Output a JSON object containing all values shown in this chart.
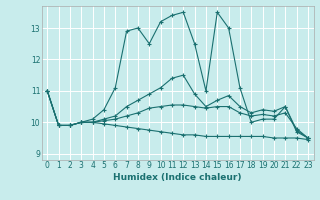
{
  "xlabel": "Humidex (Indice chaleur)",
  "background_color": "#c8ecec",
  "line_color": "#1a7070",
  "grid_color": "#ffffff",
  "xlim": [
    -0.5,
    23.5
  ],
  "ylim": [
    8.8,
    13.7
  ],
  "yticks": [
    9,
    10,
    11,
    12,
    13
  ],
  "xticks": [
    0,
    1,
    2,
    3,
    4,
    5,
    6,
    7,
    8,
    9,
    10,
    11,
    12,
    13,
    14,
    15,
    16,
    17,
    18,
    19,
    20,
    21,
    22,
    23
  ],
  "series": [
    [
      11.0,
      9.9,
      9.9,
      10.0,
      10.1,
      10.4,
      11.1,
      12.9,
      13.0,
      12.5,
      13.2,
      13.4,
      13.5,
      12.5,
      11.0,
      13.5,
      13.0,
      11.1,
      10.0,
      10.1,
      10.1,
      10.5,
      9.7,
      9.5
    ],
    [
      11.0,
      9.9,
      9.9,
      10.0,
      10.0,
      10.1,
      10.2,
      10.5,
      10.7,
      10.9,
      11.1,
      11.4,
      11.5,
      10.9,
      10.5,
      10.7,
      10.85,
      10.5,
      10.3,
      10.4,
      10.35,
      10.5,
      9.75,
      9.5
    ],
    [
      11.0,
      9.9,
      9.9,
      10.0,
      10.0,
      10.05,
      10.1,
      10.2,
      10.3,
      10.45,
      10.5,
      10.55,
      10.55,
      10.5,
      10.45,
      10.5,
      10.5,
      10.3,
      10.2,
      10.25,
      10.2,
      10.3,
      9.8,
      9.5
    ],
    [
      11.0,
      9.9,
      9.9,
      10.0,
      10.0,
      9.95,
      9.9,
      9.85,
      9.8,
      9.75,
      9.7,
      9.65,
      9.6,
      9.6,
      9.55,
      9.55,
      9.55,
      9.55,
      9.55,
      9.55,
      9.5,
      9.5,
      9.5,
      9.45
    ]
  ]
}
